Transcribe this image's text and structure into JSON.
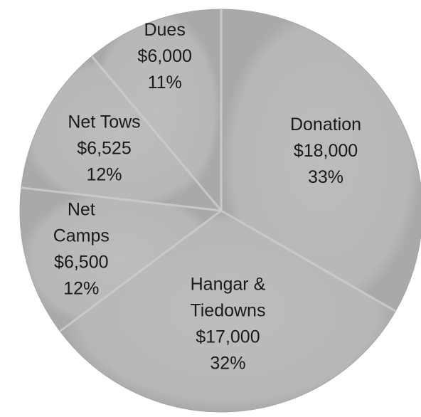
{
  "chart_data": {
    "type": "pie",
    "categories": [
      "Donation",
      "Hangar & Tiedowns",
      "Net Camps",
      "Net Tows",
      "Dues"
    ],
    "values": [
      18000,
      17000,
      6500,
      6525,
      6000
    ],
    "percentages": [
      33,
      32,
      12,
      12,
      11
    ],
    "slices": [
      {
        "name": "Donation",
        "lines": [
          "Donation",
          "$18,000",
          "33%"
        ],
        "value": 18000
      },
      {
        "name": "Hangar & Tiedowns",
        "lines": [
          "Hangar &",
          "Tiedowns",
          "$17,000",
          "32%"
        ],
        "value": 17000
      },
      {
        "name": "Net Camps",
        "lines": [
          "Net",
          "Camps",
          "$6,500",
          "12%"
        ],
        "value": 6500
      },
      {
        "name": "Net Tows",
        "lines": [
          "Net Tows",
          "$6,525",
          "12%"
        ],
        "value": 6525
      },
      {
        "name": "Dues",
        "lines": [
          "Dues",
          "$6,000",
          "11%"
        ],
        "value": 6000
      }
    ],
    "colors": {
      "fill": "#b8b8b8",
      "edge": "#a6a6a6",
      "divider": "#d0d0d0"
    },
    "legend": "none"
  }
}
